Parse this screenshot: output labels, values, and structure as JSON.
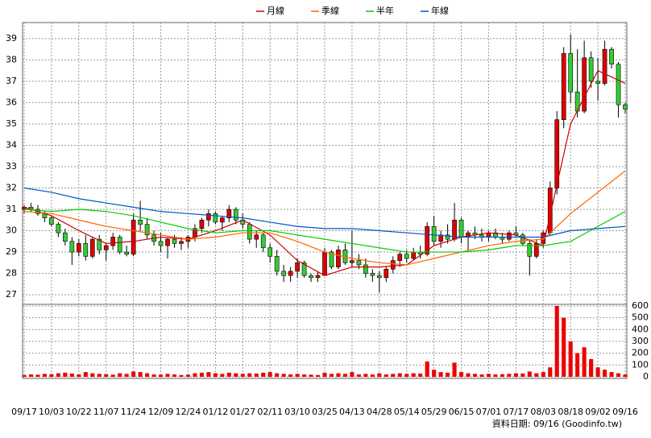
{
  "chart_data": {
    "type": "candlestick",
    "series": [
      {
        "name": "月線",
        "color": "#cc0000",
        "x": [
          0,
          4,
          8,
          12,
          16,
          20,
          24,
          28,
          32,
          36,
          40,
          44,
          48,
          52,
          56,
          60,
          64,
          68,
          72,
          76,
          80,
          84,
          88
        ],
        "values": [
          31.1,
          30.7,
          30.0,
          29.4,
          29.5,
          29.7,
          29.6,
          30.0,
          30.5,
          29.8,
          28.6,
          27.9,
          28.3,
          28.3,
          28.4,
          29.3,
          29.7,
          29.9,
          29.8,
          29.3,
          35.0,
          37.5,
          36.9
        ]
      },
      {
        "name": "季線",
        "color": "#ff6600",
        "x": [
          0,
          4,
          8,
          12,
          16,
          20,
          24,
          28,
          32,
          36,
          40,
          44,
          48,
          52,
          56,
          60,
          64,
          68,
          72,
          76,
          80,
          84,
          88
        ],
        "values": [
          30.9,
          30.8,
          30.5,
          30.2,
          30.0,
          29.8,
          29.6,
          29.7,
          29.9,
          29.9,
          29.5,
          29.0,
          28.7,
          28.5,
          28.4,
          28.7,
          29.0,
          29.3,
          29.5,
          29.6,
          30.8,
          31.8,
          32.8
        ]
      },
      {
        "name": "半年",
        "color": "#00cc00",
        "x": [
          0,
          4,
          8,
          12,
          16,
          20,
          24,
          28,
          32,
          36,
          40,
          44,
          48,
          52,
          56,
          60,
          64,
          68,
          72,
          76,
          80,
          84,
          88
        ],
        "values": [
          31.0,
          30.9,
          31.0,
          30.9,
          30.7,
          30.4,
          30.1,
          29.9,
          30.0,
          30.0,
          29.8,
          29.6,
          29.4,
          29.2,
          29.0,
          29.0,
          29.0,
          29.1,
          29.3,
          29.3,
          29.5,
          30.2,
          30.9
        ]
      },
      {
        "name": "年線",
        "color": "#0055cc",
        "x": [
          0,
          4,
          8,
          12,
          16,
          20,
          24,
          28,
          32,
          36,
          40,
          44,
          48,
          52,
          56,
          60,
          64,
          68,
          72,
          76,
          80,
          84,
          88
        ],
        "values": [
          32.0,
          31.8,
          31.5,
          31.3,
          31.1,
          30.9,
          30.8,
          30.7,
          30.6,
          30.4,
          30.2,
          30.1,
          30.1,
          30.0,
          29.9,
          29.8,
          29.7,
          29.7,
          29.7,
          29.7,
          30.0,
          30.1,
          30.2
        ]
      }
    ],
    "ohlc": [
      [
        31.0,
        31.2,
        30.8,
        31.1
      ],
      [
        31.1,
        31.3,
        30.9,
        31.0
      ],
      [
        31.0,
        31.2,
        30.7,
        30.8
      ],
      [
        30.8,
        30.9,
        30.4,
        30.6
      ],
      [
        30.6,
        30.7,
        30.2,
        30.3
      ],
      [
        30.3,
        30.4,
        29.7,
        29.9
      ],
      [
        29.9,
        30.1,
        29.3,
        29.5
      ],
      [
        29.5,
        29.7,
        28.4,
        29.0
      ],
      [
        29.0,
        29.6,
        28.8,
        29.4
      ],
      [
        29.4,
        29.8,
        28.6,
        28.8
      ],
      [
        28.8,
        29.7,
        28.7,
        29.6
      ],
      [
        29.6,
        29.8,
        28.9,
        29.1
      ],
      [
        29.1,
        29.4,
        28.6,
        29.3
      ],
      [
        29.3,
        29.9,
        29.1,
        29.7
      ],
      [
        29.7,
        29.8,
        28.9,
        29.0
      ],
      [
        29.0,
        29.3,
        28.8,
        28.9
      ],
      [
        28.9,
        30.8,
        28.8,
        30.5
      ],
      [
        30.5,
        31.4,
        30.0,
        30.3
      ],
      [
        30.3,
        30.6,
        29.6,
        29.8
      ],
      [
        29.8,
        30.0,
        29.3,
        29.5
      ],
      [
        29.5,
        29.9,
        29.0,
        29.3
      ],
      [
        29.3,
        29.7,
        28.7,
        29.6
      ],
      [
        29.6,
        29.8,
        29.2,
        29.4
      ],
      [
        29.4,
        29.7,
        29.1,
        29.5
      ],
      [
        29.5,
        29.8,
        29.2,
        29.7
      ],
      [
        29.7,
        30.3,
        29.5,
        30.1
      ],
      [
        30.1,
        30.6,
        29.9,
        30.5
      ],
      [
        30.5,
        31.0,
        30.2,
        30.8
      ],
      [
        30.8,
        30.9,
        30.3,
        30.4
      ],
      [
        30.4,
        30.7,
        30.0,
        30.6
      ],
      [
        30.6,
        31.2,
        30.4,
        31.0
      ],
      [
        31.0,
        31.1,
        30.3,
        30.5
      ],
      [
        30.5,
        30.8,
        30.1,
        30.3
      ],
      [
        30.3,
        30.4,
        29.4,
        29.6
      ],
      [
        29.6,
        30.0,
        29.2,
        29.8
      ],
      [
        29.8,
        29.9,
        29.0,
        29.2
      ],
      [
        29.2,
        29.4,
        28.5,
        28.8
      ],
      [
        28.8,
        29.1,
        27.9,
        28.1
      ],
      [
        28.1,
        28.4,
        27.6,
        27.9
      ],
      [
        27.9,
        28.3,
        27.6,
        28.1
      ],
      [
        28.1,
        28.7,
        27.8,
        28.5
      ],
      [
        28.5,
        28.6,
        27.8,
        27.9
      ],
      [
        27.9,
        28.0,
        27.6,
        27.8
      ],
      [
        27.8,
        28.1,
        27.6,
        27.9
      ],
      [
        27.9,
        29.2,
        27.9,
        29.0
      ],
      [
        29.0,
        29.1,
        28.2,
        28.3
      ],
      [
        28.3,
        29.3,
        28.2,
        29.1
      ],
      [
        29.1,
        29.4,
        28.4,
        28.5
      ],
      [
        28.5,
        30.0,
        28.3,
        28.6
      ],
      [
        28.6,
        28.9,
        28.2,
        28.4
      ],
      [
        28.4,
        28.7,
        27.8,
        28.0
      ],
      [
        28.0,
        28.2,
        27.6,
        27.9
      ],
      [
        27.9,
        28.1,
        27.1,
        27.8
      ],
      [
        27.8,
        28.3,
        27.6,
        28.2
      ],
      [
        28.2,
        28.8,
        28.0,
        28.6
      ],
      [
        28.6,
        29.0,
        28.3,
        28.9
      ],
      [
        28.9,
        29.1,
        28.5,
        28.7
      ],
      [
        28.7,
        29.2,
        28.6,
        29.0
      ],
      [
        29.0,
        29.3,
        28.7,
        28.9
      ],
      [
        28.9,
        30.4,
        28.8,
        30.2
      ],
      [
        30.2,
        30.7,
        29.3,
        29.5
      ],
      [
        29.5,
        30.0,
        29.2,
        29.8
      ],
      [
        29.8,
        30.3,
        29.4,
        29.6
      ],
      [
        29.6,
        31.3,
        29.5,
        30.5
      ],
      [
        30.5,
        30.6,
        29.4,
        29.7
      ],
      [
        29.7,
        30.0,
        29.1,
        29.9
      ],
      [
        29.9,
        30.2,
        29.6,
        29.8
      ],
      [
        29.8,
        30.1,
        29.5,
        29.7
      ],
      [
        29.7,
        30.0,
        29.5,
        29.9
      ],
      [
        29.9,
        30.1,
        29.6,
        29.7
      ],
      [
        29.7,
        29.9,
        29.4,
        29.6
      ],
      [
        29.6,
        30.0,
        29.5,
        29.9
      ],
      [
        29.9,
        30.2,
        29.7,
        29.8
      ],
      [
        29.8,
        29.9,
        29.3,
        29.4
      ],
      [
        29.4,
        29.6,
        27.9,
        28.8
      ],
      [
        28.8,
        29.6,
        28.7,
        29.4
      ],
      [
        29.4,
        30.0,
        29.2,
        29.9
      ],
      [
        29.9,
        32.3,
        29.8,
        32.0
      ],
      [
        32.0,
        35.6,
        31.7,
        35.2
      ],
      [
        35.2,
        38.6,
        34.8,
        38.3
      ],
      [
        38.3,
        39.2,
        36.0,
        36.5
      ],
      [
        36.5,
        38.5,
        35.3,
        35.6
      ],
      [
        35.6,
        38.9,
        35.5,
        38.1
      ],
      [
        38.1,
        38.4,
        36.7,
        37.0
      ],
      [
        37.0,
        38.1,
        36.1,
        36.9
      ],
      [
        36.9,
        38.9,
        36.8,
        38.5
      ],
      [
        38.5,
        38.6,
        37.6,
        37.8
      ],
      [
        37.8,
        37.9,
        35.3,
        35.9
      ],
      [
        35.9,
        36.0,
        35.5,
        35.7
      ]
    ],
    "up_color": "#e00000",
    "down_color": "#33cc33",
    "volume": {
      "color": "#ee0000",
      "axis": "y2",
      "values": [
        15,
        20,
        18,
        25,
        22,
        30,
        35,
        28,
        20,
        40,
        30,
        25,
        22,
        18,
        30,
        25,
        45,
        40,
        30,
        20,
        18,
        25,
        20,
        15,
        18,
        30,
        35,
        40,
        30,
        25,
        35,
        30,
        25,
        30,
        28,
        35,
        40,
        30,
        25,
        20,
        25,
        20,
        18,
        15,
        35,
        25,
        30,
        25,
        40,
        20,
        25,
        20,
        30,
        20,
        25,
        30,
        25,
        30,
        28,
        130,
        60,
        40,
        35,
        120,
        40,
        30,
        25,
        20,
        25,
        20,
        22,
        25,
        30,
        28,
        45,
        30,
        40,
        80,
        600,
        500,
        300,
        200,
        250,
        150,
        80,
        60,
        40,
        30,
        20
      ]
    },
    "xlim": [
      0,
      88
    ],
    "xticks": [
      {
        "value": 0,
        "label": "09/17"
      },
      {
        "value": 4,
        "label": "10/03"
      },
      {
        "value": 8,
        "label": "10/22"
      },
      {
        "value": 12,
        "label": "11/07"
      },
      {
        "value": 16,
        "label": "11/24"
      },
      {
        "value": 20,
        "label": "12/09"
      },
      {
        "value": 24,
        "label": "12/24"
      },
      {
        "value": 28,
        "label": "01/12"
      },
      {
        "value": 32,
        "label": "01/27"
      },
      {
        "value": 36,
        "label": "02/11"
      },
      {
        "value": 40,
        "label": "03/10"
      },
      {
        "value": 44,
        "label": "03/25"
      },
      {
        "value": 48,
        "label": "04/13"
      },
      {
        "value": 52,
        "label": "04/28"
      },
      {
        "value": 56,
        "label": "05/14"
      },
      {
        "value": 60,
        "label": "05/29"
      },
      {
        "value": 64,
        "label": "06/15"
      },
      {
        "value": 68,
        "label": "07/01"
      },
      {
        "value": 72,
        "label": "07/17"
      },
      {
        "value": 76,
        "label": "08/03"
      },
      {
        "value": 80,
        "label": "08/18"
      },
      {
        "value": 84,
        "label": "09/02"
      },
      {
        "value": 88,
        "label": "09/16"
      }
    ],
    "ylim": [
      26.55,
      39.75
    ],
    "yticks": [
      27,
      28,
      29,
      30,
      31,
      32,
      33,
      34,
      35,
      36,
      37,
      38,
      39
    ],
    "y2lim": [
      0,
      600
    ],
    "y2ticks": [
      0,
      100,
      200,
      300,
      400,
      500,
      600
    ],
    "grid": true,
    "footer": "資料日期: 09/16 (Goodinfo.tw)"
  }
}
